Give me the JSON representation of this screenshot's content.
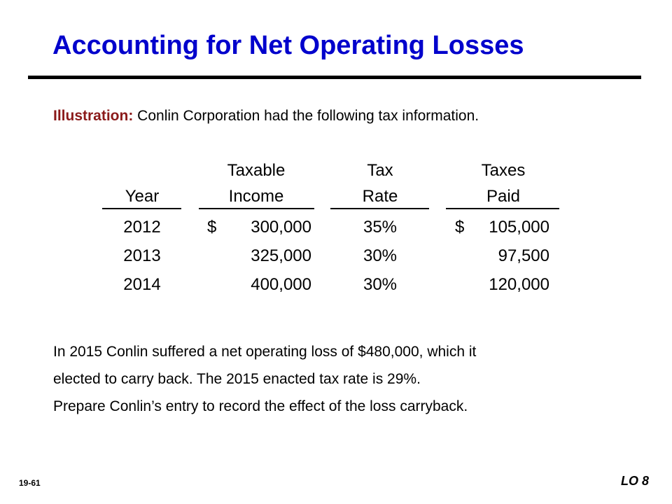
{
  "title": "Accounting for Net Operating Losses",
  "intro": {
    "lead": "Illustration:",
    "text": " Conlin Corporation had the following tax information."
  },
  "table": {
    "headers": {
      "year": [
        "",
        "Year"
      ],
      "income": [
        "Taxable",
        "Income"
      ],
      "rate": [
        "Tax",
        "Rate"
      ],
      "paid": [
        "Taxes",
        "Paid"
      ]
    },
    "rows": [
      {
        "year": "2012",
        "income_prefix": "$",
        "income": "300,000",
        "rate": "35%",
        "paid_prefix": "$",
        "paid": "105,000"
      },
      {
        "year": "2013",
        "income_prefix": "",
        "income": "325,000",
        "rate": "30%",
        "paid_prefix": "",
        "paid": "97,500"
      },
      {
        "year": "2014",
        "income_prefix": "",
        "income": "400,000",
        "rate": "30%",
        "paid_prefix": "",
        "paid": "120,000"
      }
    ]
  },
  "paragraph": [
    "In 2015 Conlin suffered a net operating loss of $480,000, which it",
    "elected to carry back.  The 2015 enacted tax rate is 29%.",
    "Prepare Conlin’s entry to record the effect of the loss carryback."
  ],
  "footer": {
    "slide_number": "19-61",
    "lo": "LO 8"
  }
}
